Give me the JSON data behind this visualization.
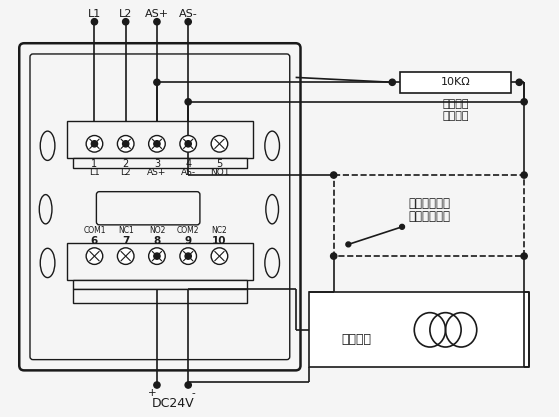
{
  "bg_color": "#f5f5f5",
  "lc": "#1a1a1a",
  "top_labels": [
    "L1",
    "L2",
    "AS+",
    "AS-"
  ],
  "row1_nums": [
    "1",
    "2",
    "3",
    "4",
    "5"
  ],
  "row1_names": [
    "L1",
    "L2",
    "AS+",
    "AS-",
    "NO1"
  ],
  "row2_labels": [
    "COM1",
    "NC1",
    "NO2",
    "COM2",
    "NC2"
  ],
  "row2_nums": [
    "6",
    "7",
    "8",
    "9",
    "10"
  ],
  "resistor_label": "10KΩ",
  "res_sub1": "线路断线",
  "res_sub2": "检测电阵",
  "fb_label1": "受控设备动作",
  "fb_label2": "后的反馈开关",
  "dev_label": "受控设备",
  "dc_label": "DC24V"
}
